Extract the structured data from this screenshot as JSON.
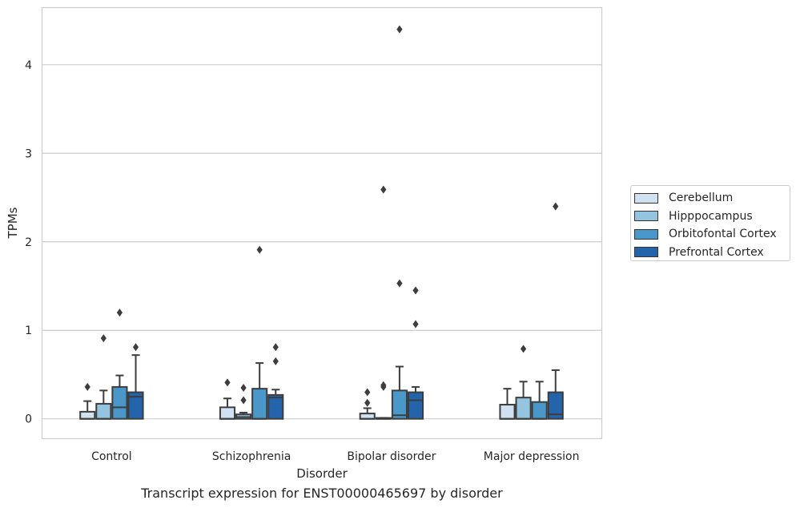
{
  "caption": "Transcript expression for ENST00000465697 by disorder",
  "chart_data": {
    "type": "box",
    "xlabel": "Disorder",
    "ylabel": "TPMs",
    "ylim": [
      -0.22,
      4.65
    ],
    "yticks": [
      0,
      1,
      2,
      3,
      4
    ],
    "grid": "horizontal",
    "legend_placement": "right",
    "categories": [
      "Control",
      "Schizophrenia",
      "Bipolar disorder",
      "Major depression"
    ],
    "series": [
      {
        "name": "Cerebellum",
        "color": "#d0e1f2",
        "boxes": [
          {
            "whisker_low": 0,
            "q1": 0,
            "median": 0,
            "q3": 0.08,
            "whisker_high": 0.2,
            "outliers": [
              0.36
            ]
          },
          {
            "whisker_low": 0,
            "q1": 0,
            "median": 0,
            "q3": 0.13,
            "whisker_high": 0.23,
            "outliers": [
              0.41
            ]
          },
          {
            "whisker_low": 0,
            "q1": 0,
            "median": 0,
            "q3": 0.06,
            "whisker_high": 0.12,
            "outliers": [
              0.18,
              0.3
            ]
          },
          {
            "whisker_low": 0,
            "q1": 0,
            "median": 0,
            "q3": 0.16,
            "whisker_high": 0.34,
            "outliers": []
          }
        ]
      },
      {
        "name": "Hipppocampus",
        "color": "#94c4df",
        "boxes": [
          {
            "whisker_low": 0,
            "q1": 0,
            "median": 0,
            "q3": 0.17,
            "whisker_high": 0.32,
            "outliers": [
              0.91
            ]
          },
          {
            "whisker_low": 0,
            "q1": 0,
            "median": 0.02,
            "q3": 0.05,
            "whisker_high": 0.07,
            "outliers": [
              0.21,
              0.35
            ]
          },
          {
            "whisker_low": 0,
            "q1": 0,
            "median": 0,
            "q3": 0.01,
            "whisker_high": 0.01,
            "outliers": [
              0.36,
              0.38,
              2.59
            ]
          },
          {
            "whisker_low": 0,
            "q1": 0,
            "median": 0,
            "q3": 0.24,
            "whisker_high": 0.42,
            "outliers": [
              0.79
            ]
          }
        ]
      },
      {
        "name": "Orbitofontal Cortex",
        "color": "#4a98c9",
        "boxes": [
          {
            "whisker_low": 0,
            "q1": 0,
            "median": 0.13,
            "q3": 0.36,
            "whisker_high": 0.49,
            "outliers": [
              1.2
            ]
          },
          {
            "whisker_low": 0,
            "q1": 0,
            "median": 0,
            "q3": 0.34,
            "whisker_high": 0.63,
            "outliers": [
              1.91
            ]
          },
          {
            "whisker_low": 0,
            "q1": 0,
            "median": 0.04,
            "q3": 0.32,
            "whisker_high": 0.59,
            "outliers": [
              1.53,
              4.4
            ]
          },
          {
            "whisker_low": 0,
            "q1": 0,
            "median": 0,
            "q3": 0.19,
            "whisker_high": 0.42,
            "outliers": []
          }
        ]
      },
      {
        "name": "Prefrontal Cortex",
        "color": "#2364aa",
        "boxes": [
          {
            "whisker_low": 0,
            "q1": 0,
            "median": 0.25,
            "q3": 0.3,
            "whisker_high": 0.72,
            "outliers": [
              0.81
            ]
          },
          {
            "whisker_low": 0,
            "q1": 0,
            "median": 0.24,
            "q3": 0.27,
            "whisker_high": 0.33,
            "outliers": [
              0.65,
              0.81
            ]
          },
          {
            "whisker_low": 0,
            "q1": 0,
            "median": 0.21,
            "q3": 0.3,
            "whisker_high": 0.36,
            "outliers": [
              1.07,
              1.45
            ]
          },
          {
            "whisker_low": 0,
            "q1": 0,
            "median": 0.05,
            "q3": 0.3,
            "whisker_high": 0.55,
            "outliers": [
              2.4
            ]
          }
        ]
      }
    ]
  }
}
